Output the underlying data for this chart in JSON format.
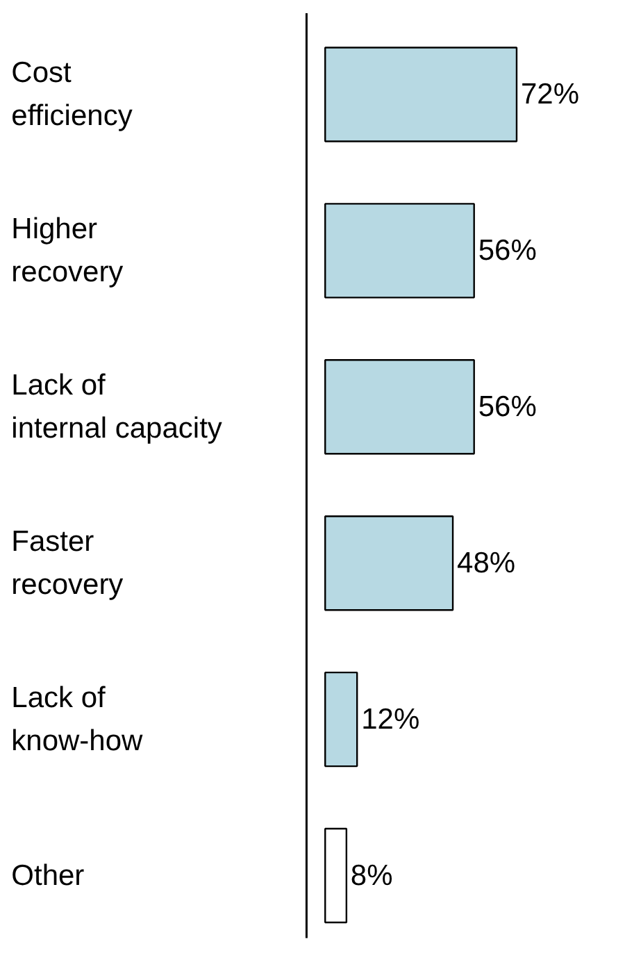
{
  "chart_data": {
    "type": "bar",
    "orientation": "horizontal",
    "relative": false,
    "categories": [
      "Cost\nefficiency",
      "Higher\nrecovery",
      "Lack of\ninternal capacity",
      "Faster\nrecovery",
      "Lack of\nknow-how",
      "Other"
    ],
    "values": [
      72,
      56,
      56,
      48,
      12,
      8
    ],
    "colors": [
      "#b7d9e3",
      "#b7d9e3",
      "#b7d9e3",
      "#b7d9e3",
      "#b7d9e3",
      "#ffffff"
    ],
    "value_labels": [
      "72%",
      "56%",
      "56%",
      "48%",
      "12%",
      "8%"
    ]
  }
}
